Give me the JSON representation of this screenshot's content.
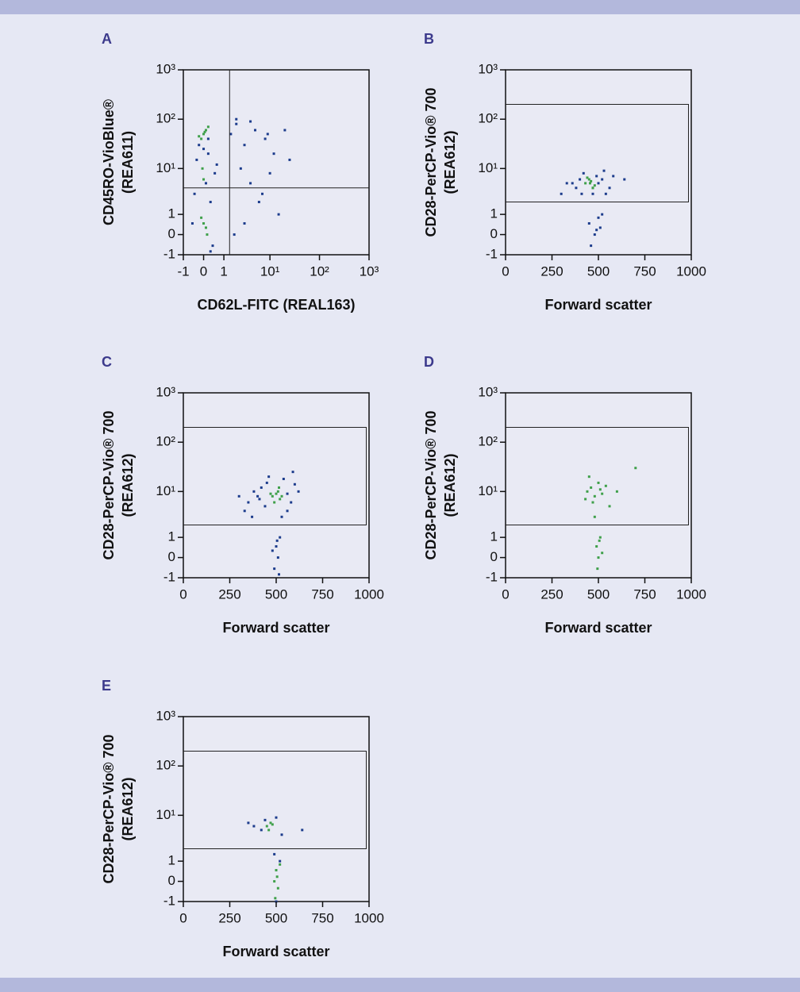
{
  "chart_data": [
    {
      "type": "scatter",
      "panel": "A",
      "xlabel": "CD62L-FITC (REAL163)",
      "ylabel": [
        "CD45RO-VioBlue®",
        "(REA611)"
      ],
      "xscale": "logicle",
      "yscale": "logicle",
      "xlim": [
        -1,
        1000
      ],
      "ylim": [
        -1,
        1000
      ],
      "xticks": [
        -1,
        0,
        1,
        {
          "value": 10,
          "label": "10¹"
        },
        {
          "value": 100,
          "label": "10²"
        },
        {
          "value": 1000,
          "label": "10³"
        }
      ],
      "yticks": [
        -1,
        0,
        1,
        {
          "value": 10,
          "label": "10¹"
        },
        {
          "value": 100,
          "label": "10²"
        },
        {
          "value": 1000,
          "label": "10³"
        }
      ],
      "quadrant": {
        "x": 1.4,
        "y": 4
      },
      "series": [
        {
          "color": "#1c3c8c",
          "x": [
            0.2,
            -0.3,
            0.5,
            0.1,
            -0.4,
            0.3,
            0.6,
            -0.2,
            0.2,
            0.0,
            1.5,
            2,
            3,
            5,
            8,
            12,
            20,
            2.5,
            4,
            6,
            10,
            15,
            3,
            1.8,
            7,
            25,
            2,
            4,
            9,
            0.4,
            -0.5,
            0.3
          ],
          "y": [
            20,
            15,
            8,
            5,
            3,
            2,
            12,
            30,
            40,
            25,
            50,
            80,
            30,
            60,
            40,
            20,
            60,
            10,
            5,
            2,
            8,
            1,
            0.5,
            0,
            3,
            15,
            100,
            90,
            50,
            -0.5,
            0.5,
            -0.8
          ]
        },
        {
          "color": "#3fa04a",
          "x": [
            0,
            0.1,
            -0.1,
            0.2,
            -0.2,
            0.05,
            0,
            0.1,
            -0.1,
            0.15,
            0,
            -0.05
          ],
          "y": [
            50,
            60,
            40,
            70,
            45,
            55,
            0.5,
            0.3,
            0.8,
            0,
            6,
            10
          ]
        }
      ]
    },
    {
      "type": "scatter",
      "panel": "B",
      "xlabel": "Forward scatter",
      "ylabel": [
        "CD28-PerCP-Vio® 700",
        "(REA612)"
      ],
      "xscale": "linear",
      "yscale": "logicle",
      "xlim": [
        0,
        1000
      ],
      "ylim": [
        -1,
        1000
      ],
      "xticks": [
        0,
        250,
        500,
        750,
        1000
      ],
      "yticks": [
        -1,
        0,
        1,
        {
          "value": 10,
          "label": "10¹"
        },
        {
          "value": 100,
          "label": "10²"
        },
        {
          "value": 1000,
          "label": "10³"
        }
      ],
      "gate": {
        "x": [
          0,
          985
        ],
        "y": [
          2,
          200
        ]
      },
      "series": [
        {
          "color": "#1c3c8c",
          "x": [
            380,
            400,
            420,
            500,
            520,
            540,
            360,
            410,
            490,
            530,
            470,
            450,
            480,
            500,
            510,
            460,
            490,
            520,
            330,
            560,
            580,
            300,
            640
          ],
          "y": [
            4,
            6,
            8,
            5,
            6,
            3,
            5,
            3,
            7,
            9,
            3,
            0.5,
            0,
            0.8,
            0.3,
            -0.5,
            0.2,
            1,
            5,
            4,
            7,
            3,
            6
          ]
        },
        {
          "color": "#3fa04a",
          "x": [
            430,
            450,
            470,
            460,
            480,
            440,
            455,
            470
          ],
          "y": [
            5,
            6,
            4,
            5.5,
            4.5,
            6.5,
            5,
            4
          ]
        }
      ]
    },
    {
      "type": "scatter",
      "panel": "C",
      "xlabel": "Forward scatter",
      "ylabel": [
        "CD28-PerCP-Vio® 700",
        "(REA612)"
      ],
      "xscale": "linear",
      "yscale": "logicle",
      "xlim": [
        0,
        1000
      ],
      "ylim": [
        -1,
        1000
      ],
      "xticks": [
        0,
        250,
        500,
        750,
        1000
      ],
      "yticks": [
        -1,
        0,
        1,
        {
          "value": 10,
          "label": "10¹"
        },
        {
          "value": 100,
          "label": "10²"
        },
        {
          "value": 1000,
          "label": "10³"
        }
      ],
      "gate": {
        "x": [
          0,
          985
        ],
        "y": [
          2,
          200
        ]
      },
      "series": [
        {
          "color": "#1c3c8c",
          "x": [
            350,
            380,
            400,
            420,
            440,
            450,
            460,
            540,
            560,
            580,
            600,
            330,
            370,
            410,
            560,
            590,
            500,
            510,
            520,
            490,
            480,
            505,
            515,
            530,
            300,
            620
          ],
          "y": [
            6,
            10,
            8,
            12,
            5,
            15,
            20,
            18,
            9,
            6,
            14,
            4,
            3,
            7,
            4,
            25,
            0.5,
            0,
            1,
            -0.5,
            0.3,
            0.8,
            -0.8,
            3,
            8,
            10
          ]
        },
        {
          "color": "#3fa04a",
          "x": [
            480,
            500,
            520,
            510,
            490,
            530,
            470,
            515
          ],
          "y": [
            8,
            9,
            7,
            10,
            6,
            8,
            9,
            12
          ]
        }
      ]
    },
    {
      "type": "scatter",
      "panel": "D",
      "xlabel": "Forward scatter",
      "ylabel": [
        "CD28-PerCP-Vio® 700",
        "(REA612)"
      ],
      "xscale": "linear",
      "yscale": "logicle",
      "xlim": [
        0,
        1000
      ],
      "ylim": [
        -1,
        1000
      ],
      "xticks": [
        0,
        250,
        500,
        750,
        1000
      ],
      "yticks": [
        -1,
        0,
        1,
        {
          "value": 10,
          "label": "10¹"
        },
        {
          "value": 100,
          "label": "10²"
        },
        {
          "value": 1000,
          "label": "10³"
        }
      ],
      "gate": {
        "x": [
          0,
          985
        ],
        "y": [
          2,
          200
        ]
      },
      "series": [
        {
          "color": "#3fa04a",
          "x": [
            440,
            460,
            480,
            500,
            520,
            450,
            470,
            510,
            430,
            540,
            490,
            500,
            510,
            495,
            520,
            505,
            480,
            560,
            600,
            700
          ],
          "y": [
            10,
            12,
            8,
            15,
            9,
            20,
            6,
            11,
            7,
            13,
            0.5,
            0,
            1,
            -0.5,
            0.2,
            0.8,
            3,
            5,
            10,
            30
          ]
        }
      ]
    },
    {
      "type": "scatter",
      "panel": "E",
      "xlabel": "Forward scatter",
      "ylabel": [
        "CD28-PerCP-Vio® 700",
        "(REA612)"
      ],
      "xscale": "linear",
      "yscale": "logicle",
      "xlim": [
        0,
        1000
      ],
      "ylim": [
        -1,
        1000
      ],
      "xticks": [
        0,
        250,
        500,
        750,
        1000
      ],
      "yticks": [
        -1,
        0,
        1,
        {
          "value": 10,
          "label": "10¹"
        },
        {
          "value": 100,
          "label": "10²"
        },
        {
          "value": 1000,
          "label": "10³"
        }
      ],
      "gate": {
        "x": [
          0,
          985
        ],
        "y": [
          2,
          200
        ]
      },
      "series": [
        {
          "color": "#1c3c8c",
          "x": [
            420,
            440,
            500,
            530,
            380,
            640,
            350,
            490,
            520,
            500
          ],
          "y": [
            5,
            8,
            9,
            4,
            6,
            5,
            7,
            1.5,
            1,
            -1
          ]
        },
        {
          "color": "#3fa04a",
          "x": [
            450,
            470,
            460,
            480,
            490,
            500,
            510,
            520,
            505,
            495
          ],
          "y": [
            6,
            7,
            5,
            6.5,
            0,
            0.5,
            -0.3,
            0.8,
            0.2,
            -0.8
          ]
        }
      ]
    }
  ]
}
